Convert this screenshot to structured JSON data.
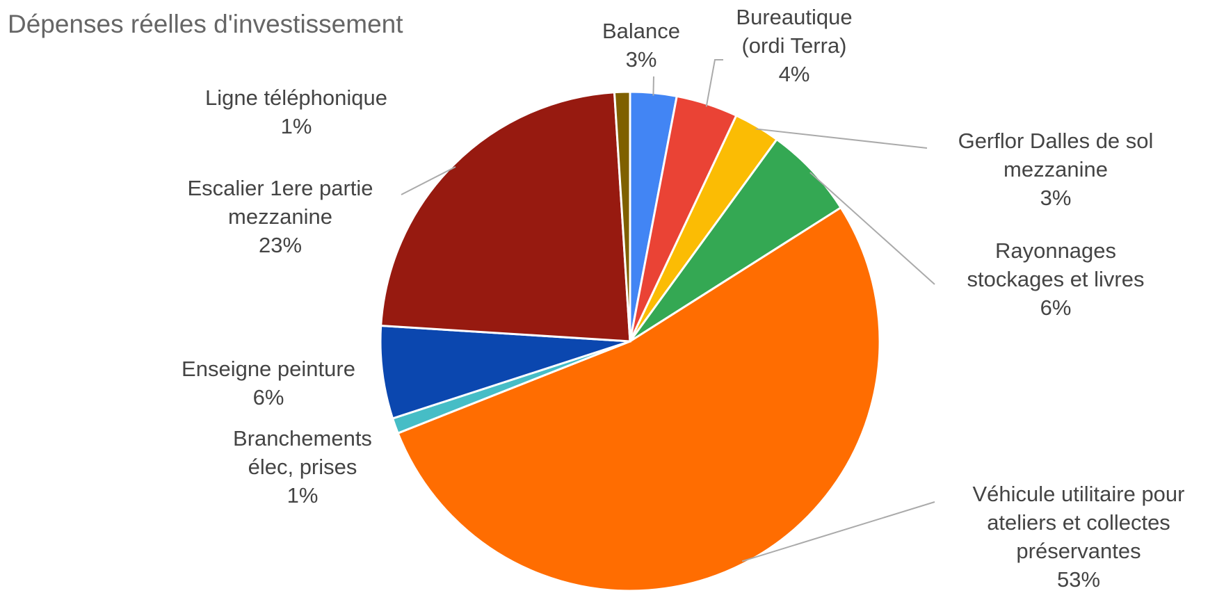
{
  "chart_data": {
    "type": "pie",
    "title": "Dépenses réelles d'investissement",
    "categories": [
      "Balance",
      "Bureautique (ordi Terra)",
      "Gerflor Dalles de sol mezzanine",
      "Rayonnages stockages et livres",
      "Véhicule utilitaire pour ateliers et collectes préservantes",
      "Branchements élec, prises",
      "Enseigne peinture",
      "Escalier 1ere partie mezzanine",
      "Ligne téléphonique"
    ],
    "values": [
      3,
      4,
      3,
      6,
      53,
      1,
      6,
      23,
      1
    ],
    "value_labels": [
      "3%",
      "4%",
      "3%",
      "6%",
      "53%",
      "1%",
      "6%",
      "23%",
      "1%"
    ],
    "colors": [
      "#4285f4",
      "#ea4335",
      "#fbbc04",
      "#34a853",
      "#ff6d01",
      "#46bdc6",
      "#0b47af",
      "#971a10",
      "#7f6000"
    ]
  }
}
